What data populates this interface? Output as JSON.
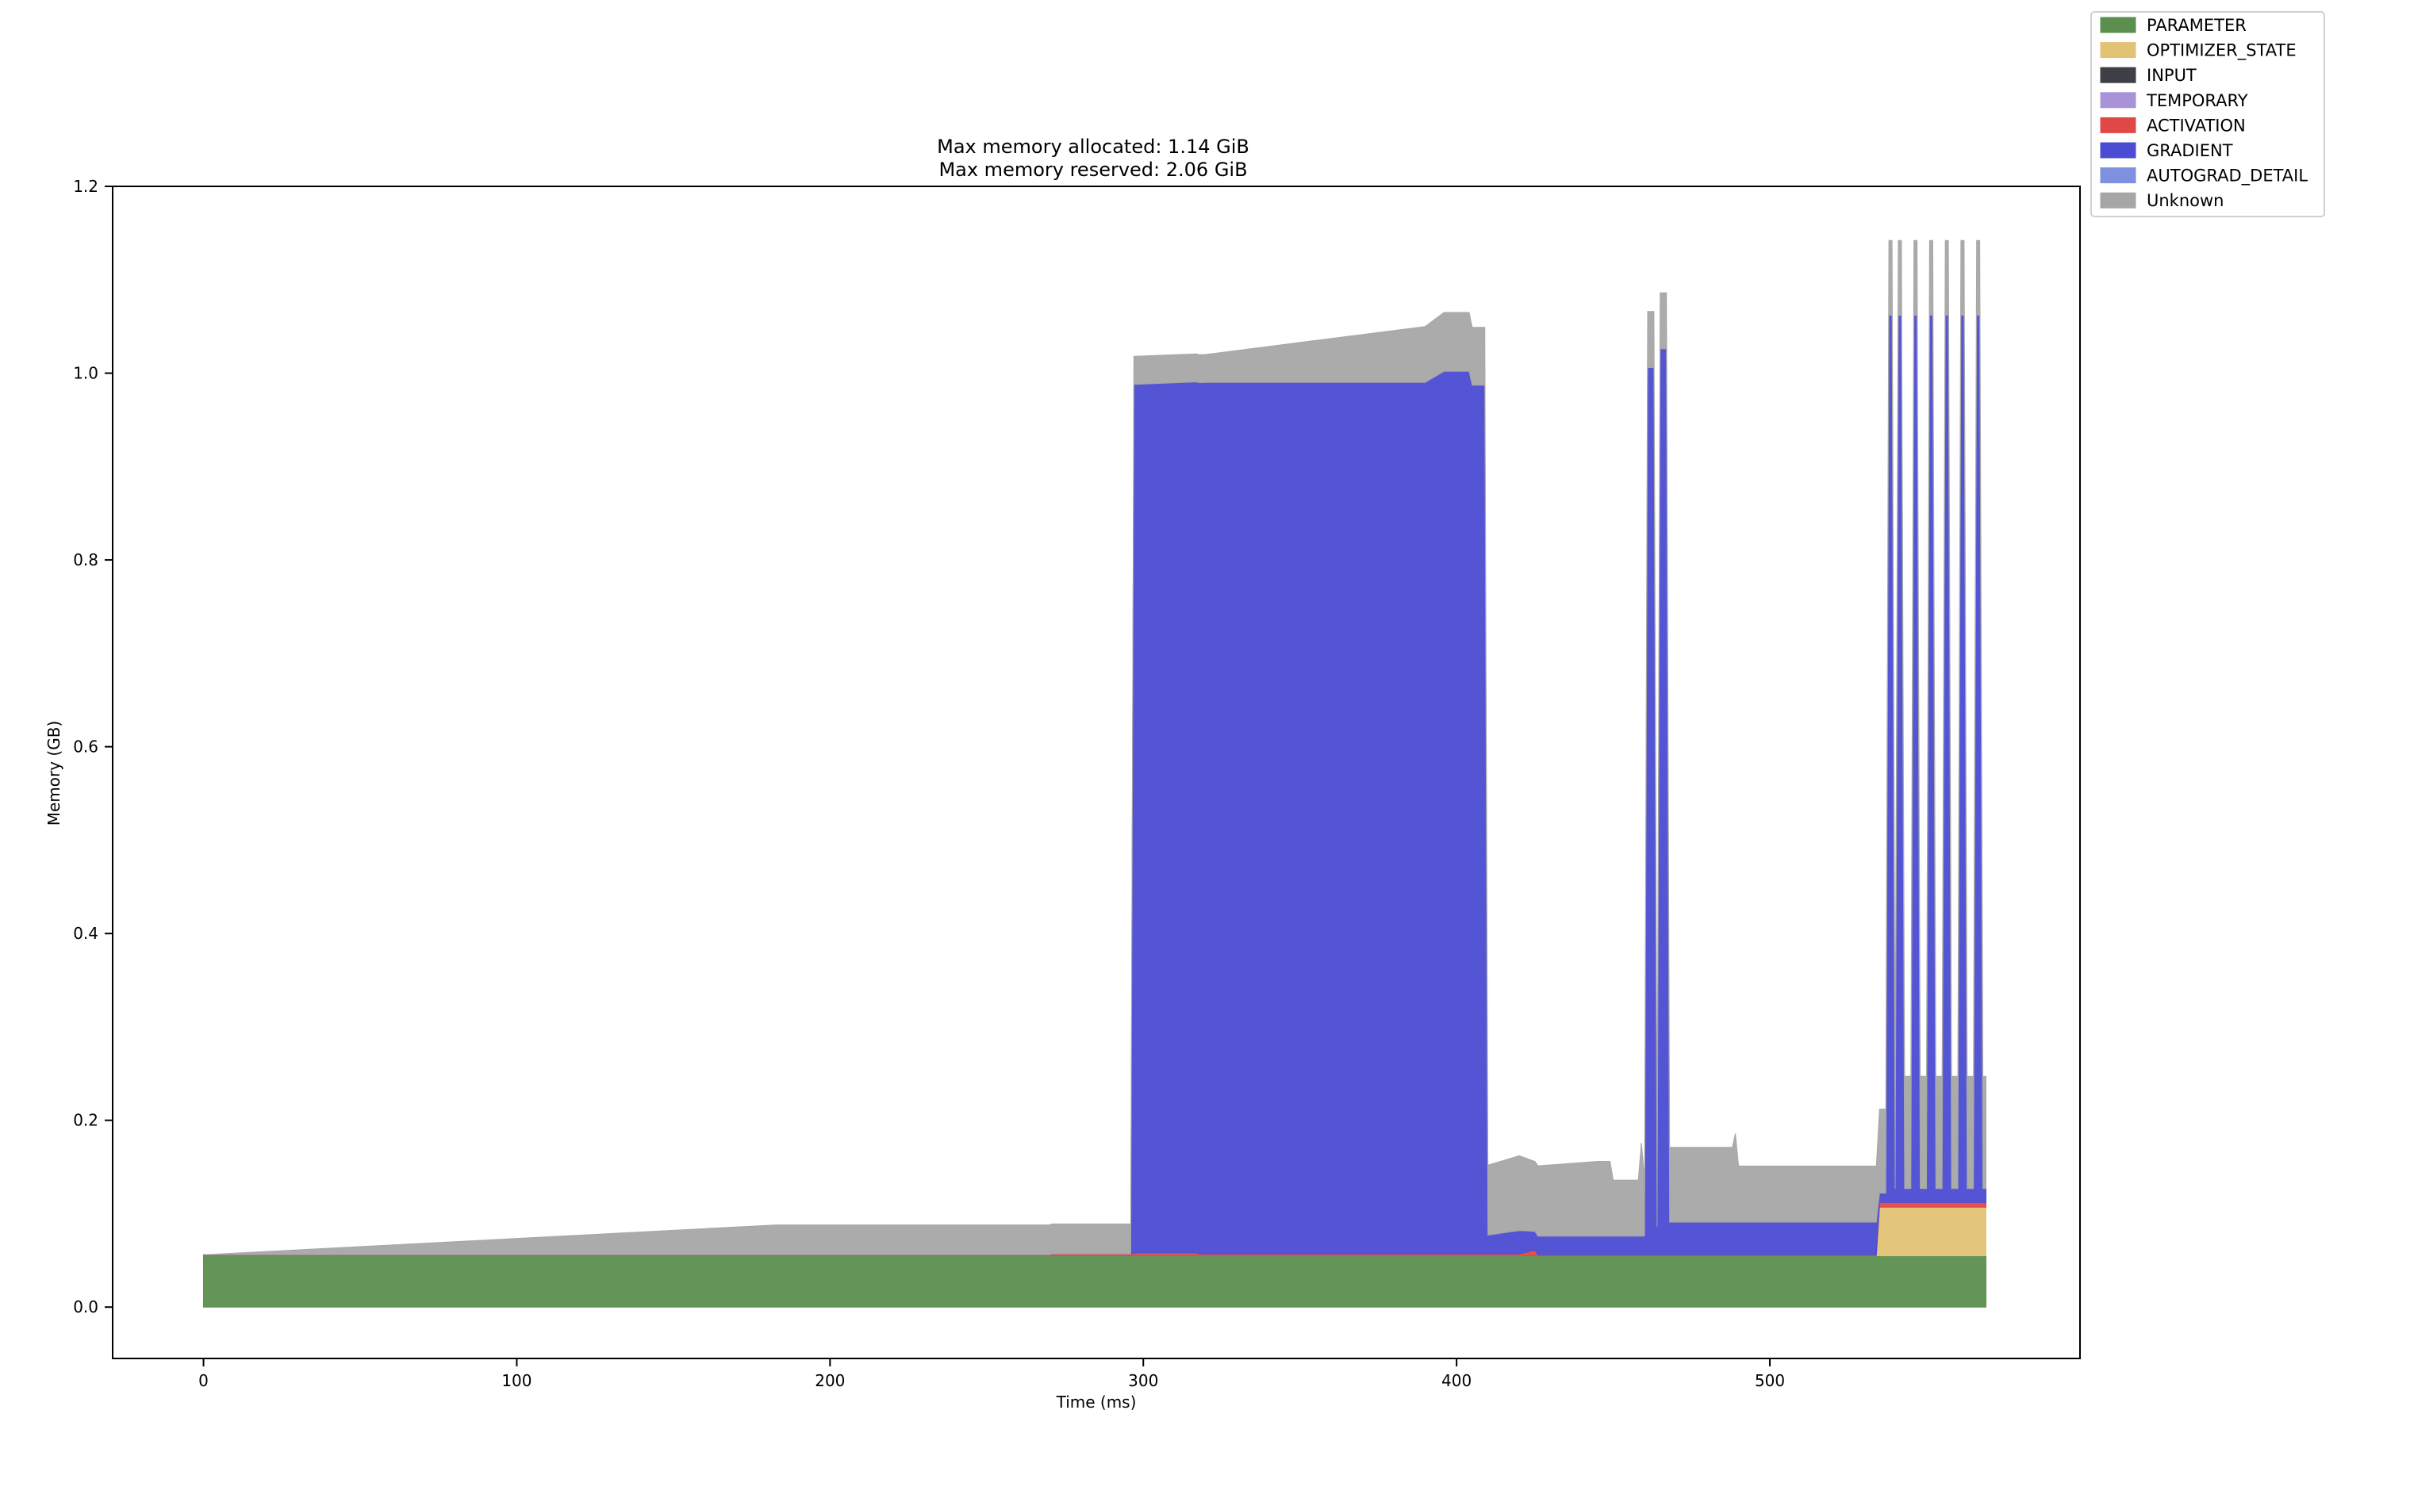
{
  "title_lines": [
    "Max memory allocated: 1.14 GiB",
    "Max memory reserved: 2.06 GiB"
  ],
  "legend": [
    {
      "label": "PARAMETER",
      "color": "#5b8f4f"
    },
    {
      "label": "OPTIMIZER_STATE",
      "color": "#e2c275"
    },
    {
      "label": "INPUT",
      "color": "#3f3f48"
    },
    {
      "label": "TEMPORARY",
      "color": "#a893d9"
    },
    {
      "label": "ACTIVATION",
      "color": "#e04848"
    },
    {
      "label": "GRADIENT",
      "color": "#4b4cd3"
    },
    {
      "label": "AUTOGRAD_DETAIL",
      "color": "#7f90e0"
    },
    {
      "label": "Unknown",
      "color": "#a6a6a6"
    }
  ],
  "chart_data": {
    "type": "area",
    "stacked": true,
    "xlabel": "Time (ms)",
    "ylabel": "Memory (GB)",
    "xlim": [
      -29,
      599
    ],
    "ylim": [
      -0.055,
      1.2
    ],
    "xticks": [
      0,
      100,
      200,
      300,
      400,
      500
    ],
    "yticks": [
      0.0,
      0.2,
      0.4,
      0.6,
      0.8,
      1.0,
      1.2
    ],
    "legend_position": "upper right, outside axes",
    "series": [
      {
        "name": "PARAMETER",
        "points": [
          [
            0,
            0.055
          ],
          [
            569,
            0.055
          ]
        ]
      },
      {
        "name": "OPTIMIZER_STATE",
        "points": [
          [
            0,
            0
          ],
          [
            534,
            0
          ],
          [
            535,
            0.052
          ],
          [
            569,
            0.052
          ]
        ]
      },
      {
        "name": "ACTIVATION",
        "points": [
          [
            0,
            0.001
          ],
          [
            270,
            0.001
          ],
          [
            271,
            0.002
          ],
          [
            296,
            0.002
          ],
          [
            297,
            0.003
          ],
          [
            317,
            0.003
          ],
          [
            318,
            0.002
          ],
          [
            420,
            0.002
          ],
          [
            425,
            0.006
          ],
          [
            426,
            0.001
          ],
          [
            534,
            0.001
          ],
          [
            535,
            0.005
          ],
          [
            569,
            0.005
          ]
        ]
      },
      {
        "name": "GRADIENT",
        "points": [
          [
            0,
            0
          ],
          [
            296,
            0
          ],
          [
            297,
            0.93
          ],
          [
            320,
            0.933
          ],
          [
            390,
            0.933
          ],
          [
            396,
            0.945
          ],
          [
            404,
            0.945
          ],
          [
            405,
            0.93
          ],
          [
            409,
            0.93
          ],
          [
            410,
            0.02
          ],
          [
            420,
            0.025
          ],
          [
            425,
            0.02
          ],
          [
            460,
            0.02
          ],
          [
            461,
            0.95
          ],
          [
            463,
            0.95
          ],
          [
            464,
            0.03
          ],
          [
            465,
            0.97
          ],
          [
            467,
            0.97
          ],
          [
            468,
            0.035
          ],
          [
            534,
            0.035
          ],
          [
            535,
            0.01
          ],
          [
            537,
            0.01
          ],
          [
            538,
            0.95
          ],
          [
            539,
            0.95
          ],
          [
            540,
            0.015
          ],
          [
            541,
            0.95
          ],
          [
            542,
            0.95
          ],
          [
            543,
            0.015
          ],
          [
            545,
            0.015
          ],
          [
            546,
            0.95
          ],
          [
            547,
            0.95
          ],
          [
            548,
            0.015
          ],
          [
            550,
            0.015
          ],
          [
            551,
            0.95
          ],
          [
            552,
            0.95
          ],
          [
            553,
            0.015
          ],
          [
            555,
            0.015
          ],
          [
            556,
            0.95
          ],
          [
            557,
            0.95
          ],
          [
            558,
            0.015
          ],
          [
            560,
            0.015
          ],
          [
            561,
            0.95
          ],
          [
            562,
            0.95
          ],
          [
            563,
            0.015
          ],
          [
            565,
            0.015
          ],
          [
            566,
            0.95
          ],
          [
            567,
            0.95
          ],
          [
            568,
            0.015
          ],
          [
            569,
            0.015
          ]
        ]
      },
      {
        "name": "Unknown",
        "points": [
          [
            0,
            0
          ],
          [
            183,
            0.032
          ],
          [
            296,
            0.032
          ],
          [
            297,
            0.03
          ],
          [
            320,
            0.03
          ],
          [
            390,
            0.06
          ],
          [
            396,
            0.063
          ],
          [
            404,
            0.063
          ],
          [
            405,
            0.062
          ],
          [
            409,
            0.062
          ],
          [
            410,
            0.075
          ],
          [
            420,
            0.08
          ],
          [
            425,
            0.075
          ],
          [
            445,
            0.08
          ],
          [
            449,
            0.08
          ],
          [
            450,
            0.06
          ],
          [
            458,
            0.06
          ],
          [
            459,
            0.1
          ],
          [
            460,
            0.06
          ],
          [
            461,
            0.06
          ],
          [
            463,
            0.06
          ],
          [
            464,
            0.08
          ],
          [
            465,
            0.06
          ],
          [
            467,
            0.06
          ],
          [
            468,
            0.08
          ],
          [
            488,
            0.08
          ],
          [
            489,
            0.095
          ],
          [
            490,
            0.06
          ],
          [
            534,
            0.06
          ],
          [
            535,
            0.09
          ],
          [
            537,
            0.09
          ],
          [
            538,
            0.08
          ],
          [
            539,
            0.08
          ],
          [
            540,
            0.12
          ],
          [
            541,
            0.08
          ],
          [
            542,
            0.08
          ],
          [
            543,
            0.12
          ],
          [
            545,
            0.12
          ],
          [
            546,
            0.08
          ],
          [
            547,
            0.08
          ],
          [
            548,
            0.12
          ],
          [
            550,
            0.12
          ],
          [
            551,
            0.08
          ],
          [
            552,
            0.08
          ],
          [
            553,
            0.12
          ],
          [
            555,
            0.12
          ],
          [
            556,
            0.08
          ],
          [
            557,
            0.08
          ],
          [
            558,
            0.12
          ],
          [
            560,
            0.12
          ],
          [
            561,
            0.08
          ],
          [
            562,
            0.08
          ],
          [
            563,
            0.12
          ],
          [
            565,
            0.12
          ],
          [
            566,
            0.08
          ],
          [
            567,
            0.08
          ],
          [
            568,
            0.12
          ],
          [
            569,
            0.12
          ]
        ]
      }
    ]
  }
}
